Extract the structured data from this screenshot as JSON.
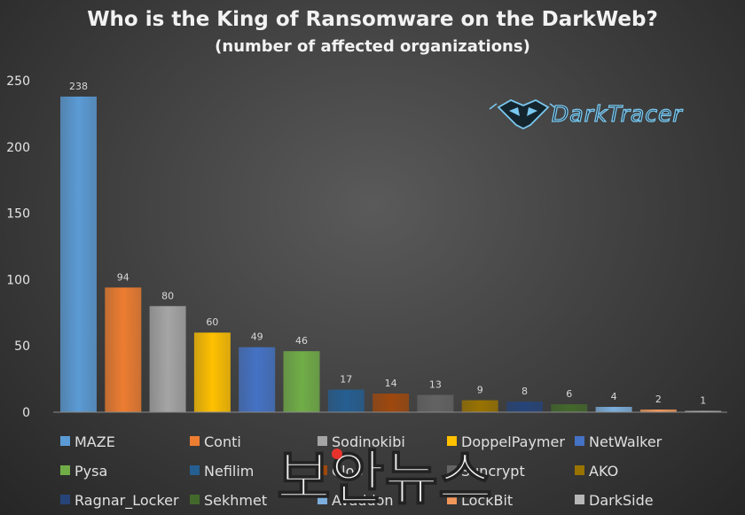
{
  "chart_data": {
    "type": "bar",
    "title": "Who is the King of Ransomware on the DarkWeb?",
    "subtitle": "(number of affected organizations)",
    "categories": [
      "MAZE",
      "Conti",
      "Sodinokibi",
      "DoppelPaymer",
      "NetWalker",
      "Pysa",
      "Nefilim",
      "Clop",
      "Suncrypt",
      "AKO",
      "Ragnar_Locker",
      "Sekhmet",
      "Avaddon",
      "LockBit",
      "DarkSide"
    ],
    "values": [
      238,
      94,
      80,
      60,
      49,
      46,
      17,
      14,
      13,
      9,
      8,
      6,
      4,
      2,
      1
    ],
    "colors": [
      "#5b9bd5",
      "#ed7d31",
      "#a5a5a5",
      "#ffc000",
      "#4472c4",
      "#70ad47",
      "#255e91",
      "#9e480e",
      "#636363",
      "#997300",
      "#264478",
      "#43682b",
      "#7cafdd",
      "#f1975a",
      "#b7b7b7"
    ],
    "ylim": [
      0,
      250
    ],
    "yticks": [
      0,
      50,
      100,
      150,
      200,
      250
    ],
    "grid": false,
    "legend_position": "bottom",
    "xlabel": "",
    "ylabel": ""
  },
  "logo": {
    "name": "darktracer-icon",
    "text": "DarkTracer"
  },
  "watermark": {
    "text": "보안뉴스"
  }
}
